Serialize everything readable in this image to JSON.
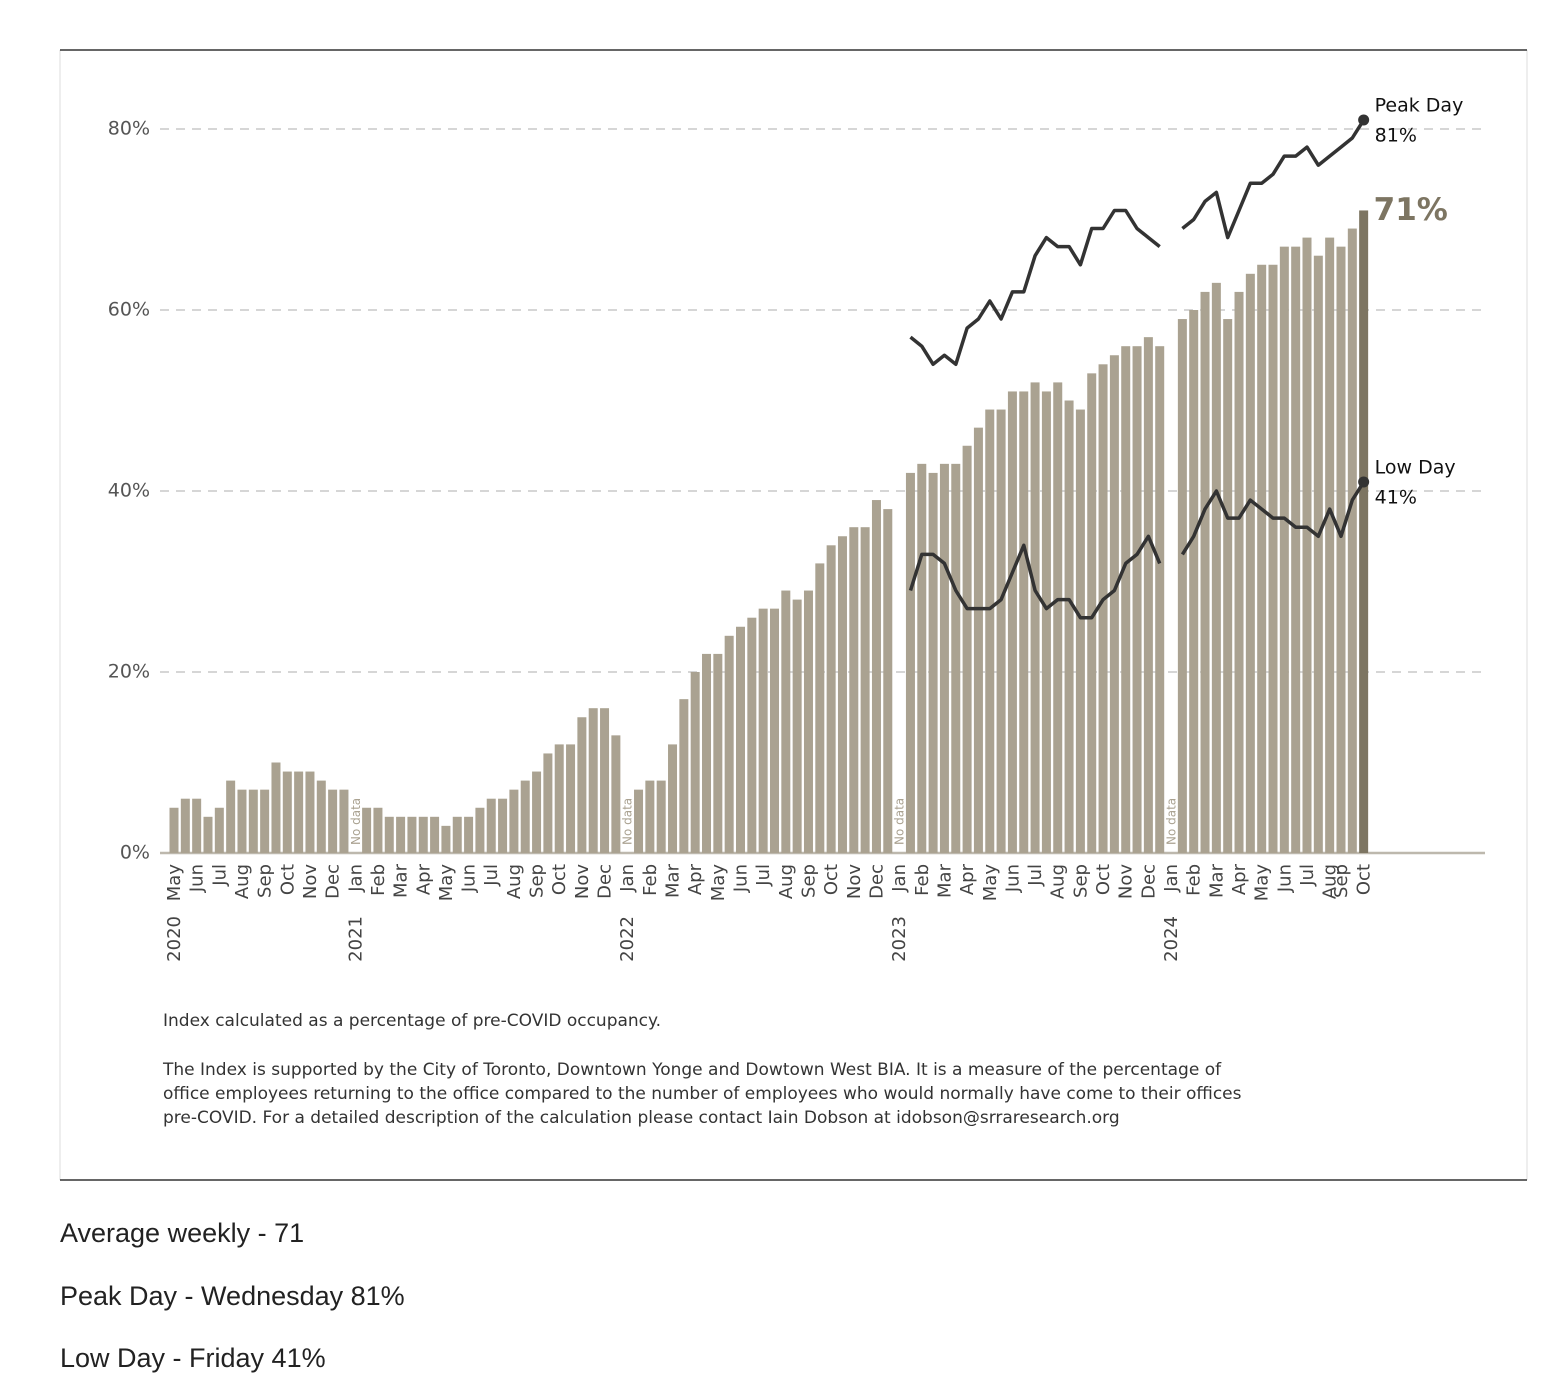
{
  "chart_data": {
    "type": "bar",
    "categories": [
      "May",
      null,
      "Jun",
      null,
      "Jul",
      null,
      "Aug",
      null,
      "Sep",
      null,
      "Oct",
      null,
      "Nov",
      null,
      "Dec",
      null,
      "Jan",
      null,
      "Feb",
      null,
      "Mar",
      null,
      "Apr",
      null,
      "May",
      null,
      "Jun",
      null,
      "Jul",
      null,
      "Aug",
      null,
      "Sep",
      null,
      "Oct",
      null,
      "Nov",
      null,
      "Dec",
      null,
      "Jan",
      null,
      "Feb",
      null,
      "Mar",
      null,
      "Apr",
      null,
      "May",
      null,
      "Jun",
      null,
      "Jul",
      null,
      "Aug",
      null,
      "Sep",
      null,
      "Oct",
      null,
      "Nov",
      null,
      "Dec",
      null,
      "Jan",
      null,
      "Feb",
      null,
      "Mar",
      null,
      "Apr",
      null,
      "May",
      null,
      "Jun",
      null,
      "Jul",
      null,
      "Aug",
      null,
      "Sep",
      null,
      "Oct",
      null,
      "Nov",
      null,
      "Dec",
      null,
      "Jan",
      null,
      "Feb",
      null,
      "Mar",
      null,
      "Apr",
      null,
      "May",
      null,
      "Jun",
      null,
      "Jul",
      null,
      "Aug",
      "Sep",
      null,
      "Oct"
    ],
    "category_years": [
      "2020",
      null,
      null,
      null,
      null,
      null,
      null,
      null,
      null,
      null,
      null,
      null,
      null,
      null,
      null,
      null,
      "2021",
      null,
      null,
      null,
      null,
      null,
      null,
      null,
      null,
      null,
      null,
      null,
      null,
      null,
      null,
      null,
      null,
      null,
      null,
      null,
      null,
      null,
      null,
      null,
      "2022",
      null,
      null,
      null,
      null,
      null,
      null,
      null,
      null,
      null,
      null,
      null,
      null,
      null,
      null,
      null,
      null,
      null,
      null,
      null,
      null,
      null,
      null,
      null,
      "2023",
      null,
      null,
      null,
      null,
      null,
      null,
      null,
      null,
      null,
      null,
      null,
      null,
      null,
      null,
      null,
      null,
      null,
      null,
      null,
      null,
      null,
      null,
      null,
      "2024",
      null,
      null,
      null,
      null,
      null,
      null,
      null,
      null,
      null,
      null,
      null,
      null,
      null,
      null,
      null,
      null,
      null
    ],
    "values": [
      5,
      6,
      6,
      4,
      5,
      8,
      7,
      7,
      7,
      10,
      9,
      9,
      9,
      8,
      7,
      7,
      null,
      5,
      5,
      4,
      4,
      4,
      4,
      4,
      3,
      4,
      4,
      5,
      6,
      6,
      7,
      8,
      9,
      11,
      12,
      12,
      15,
      16,
      16,
      13,
      null,
      7,
      8,
      8,
      12,
      17,
      20,
      22,
      22,
      24,
      25,
      26,
      27,
      27,
      29,
      28,
      29,
      32,
      34,
      35,
      36,
      36,
      39,
      38,
      null,
      42,
      43,
      42,
      43,
      43,
      45,
      47,
      49,
      49,
      51,
      51,
      52,
      51,
      52,
      50,
      49,
      53,
      54,
      55,
      56,
      56,
      57,
      56,
      null,
      59,
      60,
      62,
      63,
      59,
      62,
      64,
      65,
      65,
      67,
      67,
      68,
      66,
      68,
      67,
      69,
      71
    ],
    "value_labels": [
      null,
      null,
      null,
      null,
      null,
      null,
      null,
      null,
      null,
      null,
      null,
      null,
      null,
      null,
      null,
      null,
      null,
      null,
      null,
      null,
      null,
      null,
      null,
      null,
      null,
      null,
      null,
      null,
      null,
      null,
      null,
      null,
      null,
      null,
      null,
      null,
      null,
      null,
      null,
      null,
      null,
      null,
      null,
      null,
      null,
      null,
      null,
      null,
      null,
      null,
      null,
      null,
      null,
      null,
      null,
      null,
      null,
      null,
      null,
      null,
      null,
      null,
      null,
      null,
      null,
      null,
      null,
      null,
      null,
      null,
      null,
      null,
      null,
      null,
      null,
      null,
      null,
      null,
      null,
      null,
      null,
      null,
      null,
      null,
      null,
      null,
      null,
      null,
      null,
      null,
      null,
      null,
      null,
      null,
      null,
      null,
      null,
      null,
      null,
      null,
      null,
      null,
      null,
      null,
      null,
      "71%"
    ],
    "color": "#aaa291",
    "highlight_color": "#7d7562",
    "missing_label": "No data",
    "series": [
      {
        "name": "Peak Day",
        "type": "line",
        "color": "#333333",
        "values": [
          null,
          null,
          null,
          null,
          null,
          null,
          null,
          null,
          null,
          null,
          null,
          null,
          null,
          null,
          null,
          null,
          null,
          null,
          null,
          null,
          null,
          null,
          null,
          null,
          null,
          null,
          null,
          null,
          null,
          null,
          null,
          null,
          null,
          null,
          null,
          null,
          null,
          null,
          null,
          null,
          null,
          null,
          null,
          null,
          null,
          null,
          null,
          null,
          null,
          null,
          null,
          null,
          null,
          null,
          null,
          null,
          null,
          null,
          null,
          null,
          null,
          null,
          null,
          null,
          null,
          57,
          56,
          54,
          55,
          54,
          58,
          59,
          61,
          59,
          62,
          62,
          66,
          68,
          67,
          67,
          65,
          69,
          69,
          71,
          71,
          69,
          68,
          67,
          null,
          69,
          70,
          72,
          73,
          68,
          71,
          74,
          74,
          75,
          77,
          77,
          78,
          76,
          77,
          78,
          79,
          81
        ],
        "value_labels": [
          null,
          null,
          null,
          null,
          null,
          null,
          null,
          null,
          null,
          null,
          null,
          null,
          null,
          null,
          null,
          null,
          null,
          null,
          null,
          null,
          null,
          null,
          null,
          null,
          null,
          null,
          null,
          null,
          null,
          null,
          null,
          null,
          null,
          null,
          null,
          null,
          null,
          null,
          null,
          null,
          null,
          null,
          null,
          null,
          null,
          null,
          null,
          null,
          null,
          null,
          null,
          null,
          null,
          null,
          null,
          null,
          null,
          null,
          null,
          null,
          null,
          null,
          null,
          null,
          null,
          null,
          null,
          null,
          null,
          null,
          null,
          null,
          null,
          null,
          null,
          null,
          null,
          null,
          null,
          null,
          null,
          null,
          null,
          null,
          null,
          null,
          null,
          null,
          null,
          null,
          null,
          null,
          null,
          null,
          null,
          null,
          null,
          null,
          null,
          null,
          null,
          null,
          null,
          null,
          null,
          "81%"
        ]
      },
      {
        "name": "Low Day",
        "type": "line",
        "color": "#333333",
        "values": [
          null,
          null,
          null,
          null,
          null,
          null,
          null,
          null,
          null,
          null,
          null,
          null,
          null,
          null,
          null,
          null,
          null,
          null,
          null,
          null,
          null,
          null,
          null,
          null,
          null,
          null,
          null,
          null,
          null,
          null,
          null,
          null,
          null,
          null,
          null,
          null,
          null,
          null,
          null,
          null,
          null,
          null,
          null,
          null,
          null,
          null,
          null,
          null,
          null,
          null,
          null,
          null,
          null,
          null,
          null,
          null,
          null,
          null,
          null,
          null,
          null,
          null,
          null,
          null,
          null,
          29,
          33,
          33,
          32,
          29,
          27,
          27,
          27,
          28,
          31,
          34,
          29,
          27,
          28,
          28,
          26,
          26,
          28,
          29,
          32,
          33,
          35,
          32,
          null,
          33,
          35,
          38,
          40,
          37,
          37,
          39,
          38,
          37,
          37,
          36,
          36,
          35,
          38,
          35,
          39,
          41
        ],
        "value_labels": [
          null,
          null,
          null,
          null,
          null,
          null,
          null,
          null,
          null,
          null,
          null,
          null,
          null,
          null,
          null,
          null,
          null,
          null,
          null,
          null,
          null,
          null,
          null,
          null,
          null,
          null,
          null,
          null,
          null,
          null,
          null,
          null,
          null,
          null,
          null,
          null,
          null,
          null,
          null,
          null,
          null,
          null,
          null,
          null,
          null,
          null,
          null,
          null,
          null,
          null,
          null,
          null,
          null,
          null,
          null,
          null,
          null,
          null,
          null,
          null,
          null,
          null,
          null,
          null,
          null,
          null,
          null,
          null,
          null,
          null,
          null,
          null,
          null,
          null,
          null,
          null,
          null,
          null,
          null,
          null,
          null,
          null,
          null,
          null,
          null,
          null,
          null,
          null,
          null,
          null,
          null,
          null,
          null,
          null,
          null,
          null,
          null,
          null,
          null,
          null,
          null,
          null,
          null,
          null,
          null,
          "41%"
        ]
      }
    ],
    "ylim": [
      0,
      80
    ],
    "yticks": [
      {
        "value": 0,
        "label": "0%"
      },
      {
        "value": 20,
        "label": "20%"
      },
      {
        "value": 40,
        "label": "40%"
      },
      {
        "value": 60,
        "label": "60%"
      },
      {
        "value": 80,
        "label": "80%"
      }
    ],
    "grid": true,
    "notes": [
      "Index calculated as a percentage of pre-COVID occupancy.",
      "The Index is supported by the City of Toronto, Downtown Yonge and Dowtown West BIA. It is a measure of the percentage of office employees returning to the office compared to the number of employees who would normally have come to their offices pre-COVID. For a detailed description of the calculation please contact Iain Dobson at idobson@srraresearch.org"
    ]
  },
  "stats": [
    "Average weekly - 71",
    "Peak Day - Wednesday 81%",
    "Low Day - Friday 41%"
  ]
}
